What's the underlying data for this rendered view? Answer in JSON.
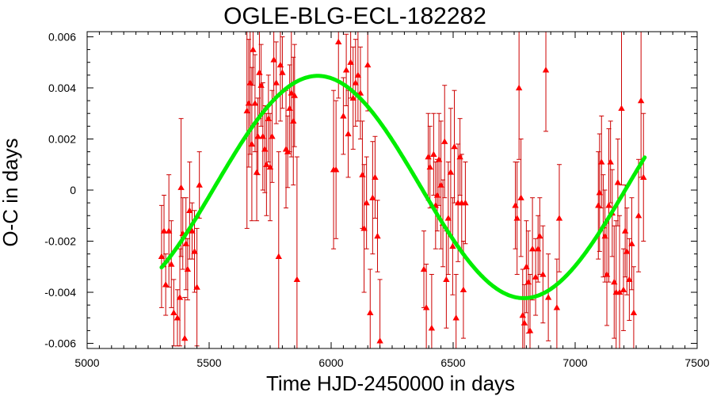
{
  "chart_data": {
    "type": "scatter",
    "title": "OGLE-BLG-ECL-182282",
    "xlabel": "Time HJD-2450000 in days",
    "ylabel": "O-C in days",
    "xlim": [
      5000,
      7500
    ],
    "ylim": [
      -0.0062,
      0.0062
    ],
    "xticks": [
      5000,
      5500,
      6000,
      6500,
      7000,
      7500
    ],
    "xtick_labels": [
      "5000",
      "5500",
      "6000",
      "6500",
      "7000",
      "7500"
    ],
    "yticks": [
      -0.006,
      -0.004,
      -0.002,
      0,
      0.002,
      0.004,
      0.006
    ],
    "ytick_labels": [
      "-0.006",
      "-0.004",
      "-0.002",
      "0",
      "0.002",
      "0.004",
      "0.006"
    ],
    "grid": false,
    "colors": {
      "points": "#ff0000",
      "errorbars": "#cc0000",
      "fit": "#00ee00"
    },
    "series": [
      {
        "kind": "points-with-errorbars",
        "points": [
          {
            "x": 5305,
            "y": -0.0026,
            "err": 0.002
          },
          {
            "x": 5315,
            "y": -0.0016,
            "err": 0.0014
          },
          {
            "x": 5322,
            "y": -0.0037,
            "err": 0.0012
          },
          {
            "x": 5335,
            "y": -0.0016,
            "err": 0.0022
          },
          {
            "x": 5345,
            "y": -0.0029,
            "err": 0.0017
          },
          {
            "x": 5355,
            "y": -0.0048,
            "err": 0.0013
          },
          {
            "x": 5370,
            "y": -0.005,
            "err": 0.0011
          },
          {
            "x": 5380,
            "y": -0.0042,
            "err": 0.0019
          },
          {
            "x": 5385,
            "y": 0.0001,
            "err": 0.0027
          },
          {
            "x": 5392,
            "y": -0.0017,
            "err": 0.0014
          },
          {
            "x": 5400,
            "y": -0.0058,
            "err": 0.0016
          },
          {
            "x": 5405,
            "y": -0.0021,
            "err": 0.0018
          },
          {
            "x": 5412,
            "y": -0.0031,
            "err": 0.0012
          },
          {
            "x": 5420,
            "y": -0.0008,
            "err": 0.0019
          },
          {
            "x": 5430,
            "y": -0.0016,
            "err": 0.0011
          },
          {
            "x": 5440,
            "y": -0.0024,
            "err": 0.0016
          },
          {
            "x": 5450,
            "y": -0.0038,
            "err": 0.0023
          },
          {
            "x": 5460,
            "y": 0.0002,
            "err": 0.0013
          },
          {
            "x": 5655,
            "y": 0.0031,
            "err": 0.0046
          },
          {
            "x": 5662,
            "y": 0.0034,
            "err": 0.0025
          },
          {
            "x": 5668,
            "y": 0.0042,
            "err": 0.0028
          },
          {
            "x": 5675,
            "y": 0.0018,
            "err": 0.003
          },
          {
            "x": 5680,
            "y": 0.0055,
            "err": 0.0014
          },
          {
            "x": 5688,
            "y": 0.0034,
            "err": 0.0019
          },
          {
            "x": 5695,
            "y": 0.0007,
            "err": 0.0019
          },
          {
            "x": 5700,
            "y": 0.0021,
            "err": 0.0015
          },
          {
            "x": 5706,
            "y": 0.0046,
            "err": 0.0018
          },
          {
            "x": 5713,
            "y": 0.0041,
            "err": 0.0016
          },
          {
            "x": 5720,
            "y": 0.0021,
            "err": 0.0021
          },
          {
            "x": 5728,
            "y": 0.0016,
            "err": 0.0017
          },
          {
            "x": 5735,
            "y": 0.001,
            "err": 0.002
          },
          {
            "x": 5743,
            "y": 0.0028,
            "err": 0.0017
          },
          {
            "x": 5750,
            "y": 0.0009,
            "err": 0.0021
          },
          {
            "x": 5758,
            "y": 0.0021,
            "err": 0.0018
          },
          {
            "x": 5765,
            "y": 0.0051,
            "err": 0.0016
          },
          {
            "x": 5775,
            "y": 0.0042,
            "err": 0.0016
          },
          {
            "x": 5785,
            "y": -0.0026,
            "err": 0.0041
          },
          {
            "x": 5792,
            "y": 0.0049,
            "err": 0.0022
          },
          {
            "x": 5800,
            "y": 0.0046,
            "err": 0.0014
          },
          {
            "x": 5815,
            "y": 0.0016,
            "err": 0.0023
          },
          {
            "x": 5822,
            "y": 0.0015,
            "err": 0.0014
          },
          {
            "x": 5830,
            "y": 0.0032,
            "err": 0.0017
          },
          {
            "x": 5837,
            "y": 0.0038,
            "err": 0.0025
          },
          {
            "x": 5845,
            "y": 0.0027,
            "err": 0.0025
          },
          {
            "x": 5850,
            "y": 0.0037,
            "err": 0.002
          },
          {
            "x": 5860,
            "y": -0.0035,
            "err": 0.0048
          },
          {
            "x": 6010,
            "y": 0.0008,
            "err": 0.0031
          },
          {
            "x": 6020,
            "y": 0.0008,
            "err": 0.0027
          },
          {
            "x": 6030,
            "y": 0.0058,
            "err": 0.0022
          },
          {
            "x": 6050,
            "y": 0.0029,
            "err": 0.0015
          },
          {
            "x": 6062,
            "y": 0.0047,
            "err": 0.0014
          },
          {
            "x": 6070,
            "y": 0.0022,
            "err": 0.0017
          },
          {
            "x": 6080,
            "y": 0.005,
            "err": 0.0014
          },
          {
            "x": 6090,
            "y": 0.0036,
            "err": 0.002
          },
          {
            "x": 6100,
            "y": 0.0042,
            "err": 0.0017
          },
          {
            "x": 6110,
            "y": 0.0045,
            "err": 0.0018
          },
          {
            "x": 6120,
            "y": 0.0038,
            "err": 0.0018
          },
          {
            "x": 6128,
            "y": 0.0006,
            "err": 0.0021
          },
          {
            "x": 6135,
            "y": -0.0015,
            "err": 0.0025
          },
          {
            "x": 6145,
            "y": -0.0005,
            "err": 0.0018
          },
          {
            "x": 6150,
            "y": 0.0049,
            "err": 0.0018
          },
          {
            "x": 6160,
            "y": -0.0048,
            "err": 0.0017
          },
          {
            "x": 6170,
            "y": -0.0003,
            "err": 0.0022
          },
          {
            "x": 6180,
            "y": 0.0005,
            "err": 0.0016
          },
          {
            "x": 6190,
            "y": -0.0018,
            "err": 0.0014
          },
          {
            "x": 6200,
            "y": -0.0059,
            "err": 0.0024
          },
          {
            "x": 6380,
            "y": -0.0031,
            "err": 0.0015
          },
          {
            "x": 6390,
            "y": -0.0046,
            "err": 0.0017
          },
          {
            "x": 6398,
            "y": 0.0013,
            "err": 0.0017
          },
          {
            "x": 6405,
            "y": 0.0009,
            "err": 0.0016
          },
          {
            "x": 6412,
            "y": -0.0054,
            "err": 0.0021
          },
          {
            "x": 6420,
            "y": 0.0014,
            "err": 0.0016
          },
          {
            "x": 6428,
            "y": -0.0006,
            "err": 0.0017
          },
          {
            "x": 6435,
            "y": -0.0002,
            "err": 0.0014
          },
          {
            "x": 6442,
            "y": 0.0012,
            "err": 0.0018
          },
          {
            "x": 6450,
            "y": 0.0002,
            "err": 0.0025
          },
          {
            "x": 6458,
            "y": -0.0013,
            "err": 0.0017
          },
          {
            "x": 6465,
            "y": 0.0019,
            "err": 0.0022
          },
          {
            "x": 6472,
            "y": -0.0035,
            "err": 0.0019
          },
          {
            "x": 6480,
            "y": -0.0011,
            "err": 0.0022
          },
          {
            "x": 6490,
            "y": 0.0007,
            "err": 0.0025
          },
          {
            "x": 6498,
            "y": -0.0022,
            "err": 0.0019
          },
          {
            "x": 6505,
            "y": 0.0017,
            "err": 0.0022
          },
          {
            "x": 6512,
            "y": -0.005,
            "err": 0.0017
          },
          {
            "x": 6520,
            "y": -0.0005,
            "err": 0.0023
          },
          {
            "x": 6528,
            "y": 0.0013,
            "err": 0.0015
          },
          {
            "x": 6535,
            "y": -0.0005,
            "err": 0.0019
          },
          {
            "x": 6542,
            "y": -0.0039,
            "err": 0.0019
          },
          {
            "x": 6550,
            "y": -0.0005,
            "err": 0.0016
          },
          {
            "x": 6755,
            "y": -0.0006,
            "err": 0.0017
          },
          {
            "x": 6762,
            "y": -0.0011,
            "err": 0.0022
          },
          {
            "x": 6770,
            "y": 0.004,
            "err": 0.0028
          },
          {
            "x": 6778,
            "y": -0.0003,
            "err": 0.0023
          },
          {
            "x": 6785,
            "y": -0.0049,
            "err": 0.0018
          },
          {
            "x": 6792,
            "y": -0.0052,
            "err": 0.0015
          },
          {
            "x": 6800,
            "y": -0.003,
            "err": 0.0018
          },
          {
            "x": 6808,
            "y": -0.0036,
            "err": 0.002
          },
          {
            "x": 6815,
            "y": -0.0055,
            "err": 0.0022
          },
          {
            "x": 6825,
            "y": -0.0023,
            "err": 0.002
          },
          {
            "x": 6838,
            "y": -0.0034,
            "err": 0.0015
          },
          {
            "x": 6848,
            "y": -0.0023,
            "err": 0.0013
          },
          {
            "x": 6855,
            "y": -0.0018,
            "err": 0.0015
          },
          {
            "x": 6868,
            "y": -0.0033,
            "err": 0.0019
          },
          {
            "x": 6880,
            "y": 0.0047,
            "err": 0.0024
          },
          {
            "x": 6890,
            "y": -0.0042,
            "err": 0.0017
          },
          {
            "x": 6925,
            "y": -0.0046,
            "err": 0.0019
          },
          {
            "x": 6935,
            "y": -0.0011,
            "err": 0.0021
          },
          {
            "x": 7095,
            "y": -0.0006,
            "err": 0.0021
          },
          {
            "x": 7100,
            "y": -0.0001,
            "err": 0.0023
          },
          {
            "x": 7108,
            "y": 0.0011,
            "err": 0.0018
          },
          {
            "x": 7115,
            "y": -0.0014,
            "err": 0.002
          },
          {
            "x": 7122,
            "y": -0.0018,
            "err": 0.0018
          },
          {
            "x": 7130,
            "y": -0.0033,
            "err": 0.002
          },
          {
            "x": 7138,
            "y": -0.0006,
            "err": 0.003
          },
          {
            "x": 7145,
            "y": 0.0011,
            "err": 0.0016
          },
          {
            "x": 7152,
            "y": -0.0009,
            "err": 0.0017
          },
          {
            "x": 7160,
            "y": -0.0036,
            "err": 0.0022
          },
          {
            "x": 7168,
            "y": -0.004,
            "err": 0.0028
          },
          {
            "x": 7175,
            "y": 0.0003,
            "err": 0.0017
          },
          {
            "x": 7182,
            "y": -0.004,
            "err": 0.003
          },
          {
            "x": 7190,
            "y": 0.0032,
            "err": 0.003
          },
          {
            "x": 7198,
            "y": -0.0039,
            "err": 0.0016
          },
          {
            "x": 7205,
            "y": -0.0016,
            "err": 0.0018
          },
          {
            "x": 7212,
            "y": -0.0024,
            "err": 0.0017
          },
          {
            "x": 7222,
            "y": -0.0035,
            "err": 0.0016
          },
          {
            "x": 7232,
            "y": -0.0021,
            "err": 0.0018
          },
          {
            "x": 7240,
            "y": -0.0048,
            "err": 0.0018
          },
          {
            "x": 7260,
            "y": -0.001,
            "err": 0.0022
          },
          {
            "x": 7270,
            "y": 0.0035,
            "err": 0.003
          },
          {
            "x": 7280,
            "y": 0.0005,
            "err": 0.0025
          }
        ]
      },
      {
        "kind": "fit-curve",
        "model": "sinusoid",
        "x_range": [
          5305,
          7285
        ],
        "amplitude": 0.00435,
        "offset": 0.00012,
        "period": 1690,
        "phase_peak_x": 5945
      }
    ]
  }
}
